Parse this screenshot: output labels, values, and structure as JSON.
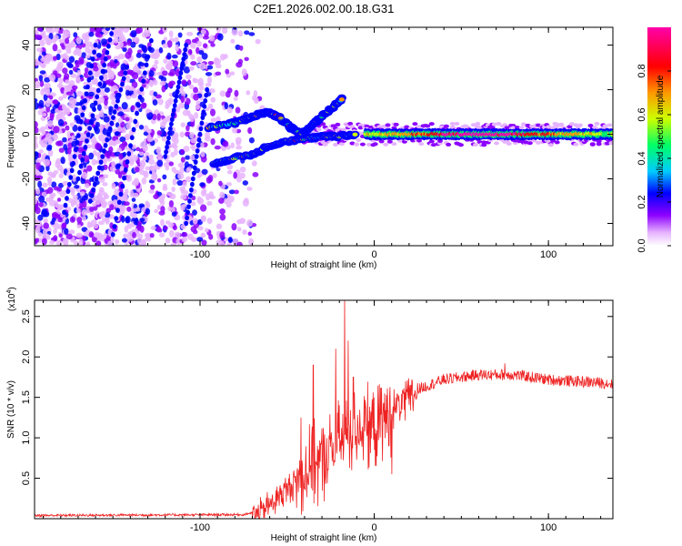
{
  "title": "C2E1.2026.002.00.18.G31",
  "chart_data": [
    {
      "type": "heatmap",
      "xlabel": "Height of straight line (km)",
      "ylabel": "Frequency (Hz)",
      "xlim": [
        -195,
        137
      ],
      "ylim": [
        -50,
        48
      ],
      "xticks": [
        -100,
        0,
        100
      ],
      "xtick_labels": [
        "-100",
        "0",
        "100"
      ],
      "yticks": [
        -40,
        -20,
        0,
        20,
        40
      ],
      "ytick_labels": [
        "-40",
        "-20",
        "0",
        "20",
        "40"
      ],
      "colorbar": {
        "label": "Normalized spectral amplitude",
        "range": [
          0,
          1
        ],
        "ticks": [
          0.0,
          0.2,
          0.4,
          0.6,
          0.8
        ],
        "tick_labels": [
          "0.0",
          "0.2",
          "0.4",
          "0.6",
          "0.8"
        ],
        "colors": [
          "#ffffff",
          "#e6b3ff",
          "#8c00ff",
          "#0000ff",
          "#00ccff",
          "#00ff66",
          "#ccff00",
          "#ff9900",
          "#ff0000",
          "#ff00aa"
        ]
      },
      "features": {
        "noise_region_x": [
          -195,
          -70
        ],
        "signal_band": {
          "x": [
            -5,
            137
          ],
          "freq": 0,
          "halfwidth_hz": 3,
          "peak_x": 62,
          "peak_amplitude": 0.9
        },
        "branches": [
          {
            "name": "upper",
            "points": [
              [
                -95,
                3
              ],
              [
                -80,
                5
              ],
              [
                -70,
                8
              ],
              [
                -62,
                10
              ],
              [
                -55,
                8
              ],
              [
                -48,
                3
              ],
              [
                -42,
                0
              ],
              [
                -36,
                4
              ],
              [
                -30,
                8
              ],
              [
                -24,
                12
              ],
              [
                -18,
                16
              ]
            ]
          },
          {
            "name": "lower",
            "points": [
              [
                -92,
                -13
              ],
              [
                -82,
                -11
              ],
              [
                -70,
                -9
              ],
              [
                -60,
                -5
              ],
              [
                -50,
                -3
              ],
              [
                -40,
                -2
              ],
              [
                -30,
                -1
              ],
              [
                -20,
                -1
              ],
              [
                -10,
                0
              ]
            ]
          }
        ]
      }
    },
    {
      "type": "line",
      "xlabel": "Height of straight line (km)",
      "ylabel": "SNR (10 * v/v)",
      "scale_label": "(x10",
      "scale_exp": "4",
      "xlim": [
        -195,
        137
      ],
      "ylim": [
        0,
        2.7
      ],
      "xticks": [
        -100,
        0,
        100
      ],
      "xtick_labels": [
        "-100",
        "0",
        "100"
      ],
      "yticks": [
        0.5,
        1.0,
        1.5,
        2.0,
        2.5
      ],
      "ytick_labels": [
        "0.5",
        "1.0",
        "1.5",
        "2.0",
        "2.5"
      ],
      "series": [
        {
          "name": "SNR",
          "color": "#ee2222",
          "keypoints": [
            [
              -195,
              0.04
            ],
            [
              -75,
              0.05
            ],
            [
              -65,
              0.1
            ],
            [
              -55,
              0.3
            ],
            [
              -45,
              0.5
            ],
            [
              -38,
              0.7
            ],
            [
              -30,
              0.8
            ],
            [
              -25,
              0.9
            ],
            [
              -18,
              1.1
            ],
            [
              -10,
              1.2
            ],
            [
              0,
              1.2
            ],
            [
              5,
              1.3
            ],
            [
              15,
              1.45
            ],
            [
              25,
              1.6
            ],
            [
              40,
              1.72
            ],
            [
              60,
              1.78
            ],
            [
              80,
              1.78
            ],
            [
              100,
              1.72
            ],
            [
              137,
              1.67
            ]
          ],
          "spikes": [
            [
              -42,
              1.25
            ],
            [
              -35,
              1.9
            ],
            [
              -22,
              2.1
            ],
            [
              -17,
              2.75
            ],
            [
              -15,
              2.2
            ],
            [
              -12,
              1.75
            ],
            [
              -5,
              1.4
            ],
            [
              6,
              1.55
            ],
            [
              10,
              0.55
            ],
            [
              18,
              1.7
            ],
            [
              75,
              1.92
            ]
          ]
        }
      ]
    }
  ]
}
